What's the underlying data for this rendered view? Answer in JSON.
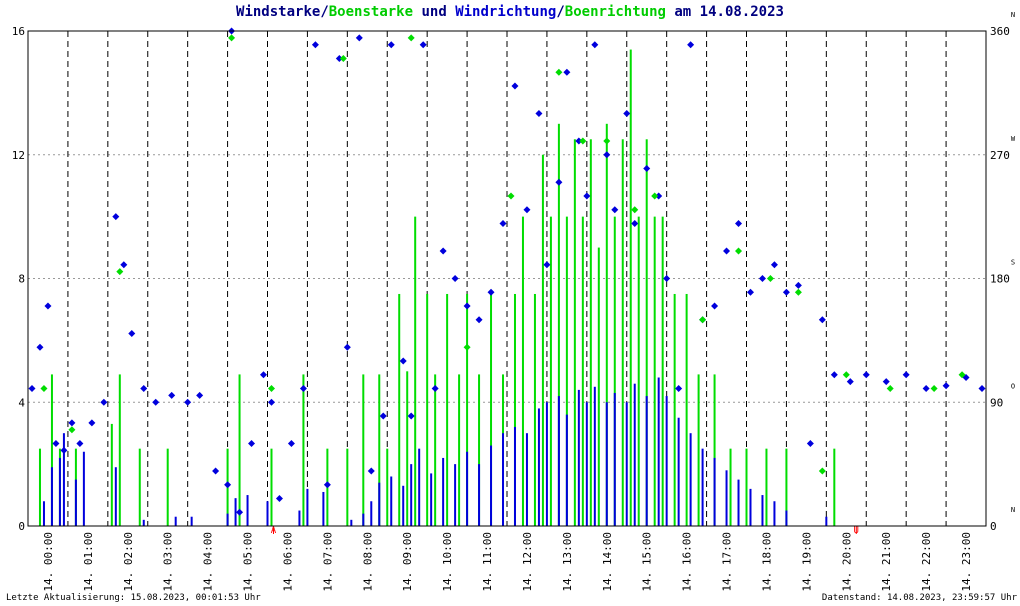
{
  "title": {
    "part1": "Windstarke",
    "sep1": "/",
    "part2": "Boenstarke",
    "part3": " und ",
    "part4": "Windrichtung",
    "sep2": "/",
    "part5": "Boenrichtung",
    "part6": " am 14.08.2023"
  },
  "footer": {
    "left": "Letzte Aktualisierung: 15.08.2023, 00:01:53 Uhr",
    "right": "Datenstand: 14.08.2023, 23:59:57 Uhr"
  },
  "colors": {
    "wind": "#0000dd",
    "gust": "#00dd00",
    "grid": "#999999",
    "vline": "#000000",
    "marker": "#ff0000"
  },
  "chart_data": {
    "type": "mixed",
    "x_unit": "hours (00:00 - 24:00)",
    "xlim": [
      0,
      24
    ],
    "ylim_left": [
      0,
      16
    ],
    "ylim_right": [
      0,
      360
    ],
    "left_ticks": [
      "0",
      "4",
      "8",
      "12",
      "16"
    ],
    "right_ticks": [
      "0",
      "90",
      "180",
      "270",
      "360"
    ],
    "right_dir_labels": [
      "N",
      "O",
      "S",
      "W",
      "N"
    ],
    "x_tick_labels": [
      "14. 00:00",
      "14. 01:00",
      "14. 02:00",
      "14. 03:00",
      "14. 04:00",
      "14. 05:00",
      "14. 06:00",
      "14. 07:00",
      "14. 08:00",
      "14. 09:00",
      "14. 10:00",
      "14. 11:00",
      "14. 12:00",
      "14. 13:00",
      "14. 14:00",
      "14. 15:00",
      "14. 16:00",
      "14. 17:00",
      "14. 18:00",
      "14. 19:00",
      "14. 20:00",
      "14. 21:00",
      "14. 22:00",
      "14. 23:00"
    ],
    "markers": [
      {
        "hour": 6.15,
        "label": "A"
      },
      {
        "hour": 20.75,
        "label": "U"
      }
    ],
    "grid": true,
    "series": [
      {
        "name": "Windstarke",
        "kind": "bars",
        "color": "#0000dd",
        "points": [
          [
            0.4,
            0.8
          ],
          [
            0.6,
            1.9
          ],
          [
            0.8,
            2.2
          ],
          [
            0.9,
            3.0
          ],
          [
            1.2,
            1.5
          ],
          [
            1.4,
            2.4
          ],
          [
            2.2,
            1.9
          ],
          [
            2.9,
            0.2
          ],
          [
            3.7,
            0.3
          ],
          [
            4.1,
            0.3
          ],
          [
            5.0,
            0.4
          ],
          [
            5.2,
            0.9
          ],
          [
            5.5,
            1.0
          ],
          [
            6.0,
            0.8
          ],
          [
            6.8,
            0.5
          ],
          [
            7.0,
            1.2
          ],
          [
            7.4,
            1.1
          ],
          [
            8.1,
            0.2
          ],
          [
            8.4,
            0.4
          ],
          [
            8.6,
            0.8
          ],
          [
            8.8,
            1.4
          ],
          [
            9.1,
            1.6
          ],
          [
            9.4,
            1.3
          ],
          [
            9.6,
            2.0
          ],
          [
            9.8,
            2.5
          ],
          [
            10.1,
            1.7
          ],
          [
            10.4,
            2.2
          ],
          [
            10.7,
            2.0
          ],
          [
            11.0,
            2.4
          ],
          [
            11.3,
            2.0
          ],
          [
            11.6,
            2.6
          ],
          [
            11.9,
            3.0
          ],
          [
            12.2,
            3.2
          ],
          [
            12.5,
            3.0
          ],
          [
            12.8,
            3.8
          ],
          [
            13.0,
            4.0
          ],
          [
            13.3,
            4.2
          ],
          [
            13.5,
            3.6
          ],
          [
            13.8,
            4.4
          ],
          [
            14.0,
            4.0
          ],
          [
            14.2,
            4.5
          ],
          [
            14.5,
            4.0
          ],
          [
            14.7,
            4.3
          ],
          [
            15.0,
            4.0
          ],
          [
            15.2,
            4.6
          ],
          [
            15.5,
            4.2
          ],
          [
            15.8,
            4.8
          ],
          [
            16.0,
            4.2
          ],
          [
            16.3,
            3.5
          ],
          [
            16.6,
            3.0
          ],
          [
            16.9,
            2.5
          ],
          [
            17.2,
            2.2
          ],
          [
            17.5,
            1.8
          ],
          [
            17.8,
            1.5
          ],
          [
            18.1,
            1.2
          ],
          [
            18.4,
            1.0
          ],
          [
            18.7,
            0.8
          ],
          [
            19.0,
            0.5
          ],
          [
            20.0,
            0.3
          ]
        ]
      },
      {
        "name": "Boenstarke",
        "kind": "bars",
        "color": "#00dd00",
        "points": [
          [
            0.3,
            2.5
          ],
          [
            0.6,
            4.9
          ],
          [
            0.8,
            2.5
          ],
          [
            1.2,
            2.5
          ],
          [
            2.1,
            3.3
          ],
          [
            2.3,
            4.9
          ],
          [
            2.8,
            2.5
          ],
          [
            3.5,
            2.5
          ],
          [
            5.0,
            2.5
          ],
          [
            5.3,
            4.9
          ],
          [
            6.1,
            2.5
          ],
          [
            6.9,
            4.9
          ],
          [
            7.5,
            2.5
          ],
          [
            8.0,
            2.5
          ],
          [
            8.4,
            4.9
          ],
          [
            8.8,
            4.9
          ],
          [
            9.0,
            2.5
          ],
          [
            9.3,
            7.5
          ],
          [
            9.5,
            5.0
          ],
          [
            9.7,
            10.0
          ],
          [
            10.0,
            7.5
          ],
          [
            10.2,
            4.9
          ],
          [
            10.5,
            7.5
          ],
          [
            10.8,
            4.9
          ],
          [
            11.0,
            7.5
          ],
          [
            11.3,
            4.9
          ],
          [
            11.6,
            7.5
          ],
          [
            11.9,
            4.9
          ],
          [
            12.2,
            7.5
          ],
          [
            12.4,
            10.0
          ],
          [
            12.7,
            7.5
          ],
          [
            12.9,
            12.0
          ],
          [
            13.1,
            10.0
          ],
          [
            13.3,
            13.0
          ],
          [
            13.5,
            10.0
          ],
          [
            13.7,
            12.5
          ],
          [
            13.9,
            10.0
          ],
          [
            14.1,
            12.5
          ],
          [
            14.3,
            9.0
          ],
          [
            14.5,
            13.0
          ],
          [
            14.7,
            10.0
          ],
          [
            14.9,
            12.5
          ],
          [
            15.1,
            15.4
          ],
          [
            15.3,
            10.0
          ],
          [
            15.5,
            12.5
          ],
          [
            15.7,
            10.0
          ],
          [
            15.9,
            10.0
          ],
          [
            16.2,
            7.5
          ],
          [
            16.5,
            7.5
          ],
          [
            16.8,
            4.9
          ],
          [
            17.2,
            4.9
          ],
          [
            17.6,
            2.5
          ],
          [
            18.0,
            2.5
          ],
          [
            18.5,
            2.5
          ],
          [
            19.0,
            2.5
          ],
          [
            20.2,
            2.5
          ]
        ]
      },
      {
        "name": "Windrichtung",
        "kind": "points",
        "color": "#0000dd",
        "y_axis": "right",
        "points": [
          [
            0.1,
            100
          ],
          [
            0.3,
            130
          ],
          [
            0.5,
            160
          ],
          [
            0.7,
            60
          ],
          [
            0.9,
            55
          ],
          [
            1.1,
            75
          ],
          [
            1.3,
            60
          ],
          [
            1.6,
            75
          ],
          [
            1.9,
            90
          ],
          [
            2.2,
            225
          ],
          [
            2.4,
            190
          ],
          [
            2.6,
            140
          ],
          [
            2.9,
            100
          ],
          [
            3.2,
            90
          ],
          [
            3.6,
            95
          ],
          [
            4.0,
            90
          ],
          [
            4.3,
            95
          ],
          [
            4.7,
            40
          ],
          [
            5.0,
            30
          ],
          [
            5.1,
            360
          ],
          [
            5.3,
            10
          ],
          [
            5.6,
            60
          ],
          [
            5.9,
            110
          ],
          [
            6.1,
            90
          ],
          [
            6.3,
            20
          ],
          [
            6.6,
            60
          ],
          [
            6.9,
            100
          ],
          [
            7.2,
            350
          ],
          [
            7.5,
            30
          ],
          [
            7.8,
            340
          ],
          [
            8.0,
            130
          ],
          [
            8.3,
            355
          ],
          [
            8.6,
            40
          ],
          [
            8.9,
            80
          ],
          [
            9.1,
            350
          ],
          [
            9.4,
            120
          ],
          [
            9.6,
            80
          ],
          [
            9.9,
            350
          ],
          [
            10.2,
            100
          ],
          [
            10.4,
            200
          ],
          [
            10.7,
            180
          ],
          [
            11.0,
            160
          ],
          [
            11.3,
            150
          ],
          [
            11.6,
            170
          ],
          [
            11.9,
            220
          ],
          [
            12.2,
            320
          ],
          [
            12.5,
            230
          ],
          [
            12.8,
            300
          ],
          [
            13.0,
            190
          ],
          [
            13.3,
            250
          ],
          [
            13.5,
            330
          ],
          [
            13.8,
            280
          ],
          [
            14.0,
            240
          ],
          [
            14.2,
            350
          ],
          [
            14.5,
            270
          ],
          [
            14.7,
            230
          ],
          [
            15.0,
            300
          ],
          [
            15.2,
            220
          ],
          [
            15.5,
            260
          ],
          [
            15.8,
            240
          ],
          [
            16.0,
            180
          ],
          [
            16.3,
            100
          ],
          [
            16.6,
            350
          ],
          [
            16.9,
            150
          ],
          [
            17.2,
            160
          ],
          [
            17.5,
            200
          ],
          [
            17.8,
            220
          ],
          [
            18.1,
            170
          ],
          [
            18.4,
            180
          ],
          [
            18.7,
            190
          ],
          [
            19.0,
            170
          ],
          [
            19.3,
            175
          ],
          [
            19.6,
            60
          ],
          [
            19.9,
            150
          ],
          [
            20.2,
            110
          ],
          [
            20.6,
            105
          ],
          [
            21.0,
            110
          ],
          [
            21.5,
            105
          ],
          [
            22.0,
            110
          ],
          [
            22.5,
            100
          ],
          [
            23.0,
            102
          ],
          [
            23.5,
            108
          ],
          [
            23.9,
            100
          ]
        ]
      },
      {
        "name": "Boenrichtung",
        "kind": "points",
        "color": "#00dd00",
        "y_axis": "right",
        "points": [
          [
            0.4,
            100
          ],
          [
            1.1,
            70
          ],
          [
            2.3,
            185
          ],
          [
            5.1,
            355
          ],
          [
            6.1,
            100
          ],
          [
            7.9,
            340
          ],
          [
            9.6,
            355
          ],
          [
            11.0,
            130
          ],
          [
            12.1,
            240
          ],
          [
            13.3,
            330
          ],
          [
            13.9,
            280
          ],
          [
            14.5,
            280
          ],
          [
            15.2,
            230
          ],
          [
            15.7,
            240
          ],
          [
            16.9,
            150
          ],
          [
            17.8,
            200
          ],
          [
            18.6,
            180
          ],
          [
            19.3,
            170
          ],
          [
            19.9,
            40
          ],
          [
            20.5,
            110
          ],
          [
            21.6,
            100
          ],
          [
            22.7,
            100
          ],
          [
            23.4,
            110
          ]
        ]
      }
    ]
  }
}
